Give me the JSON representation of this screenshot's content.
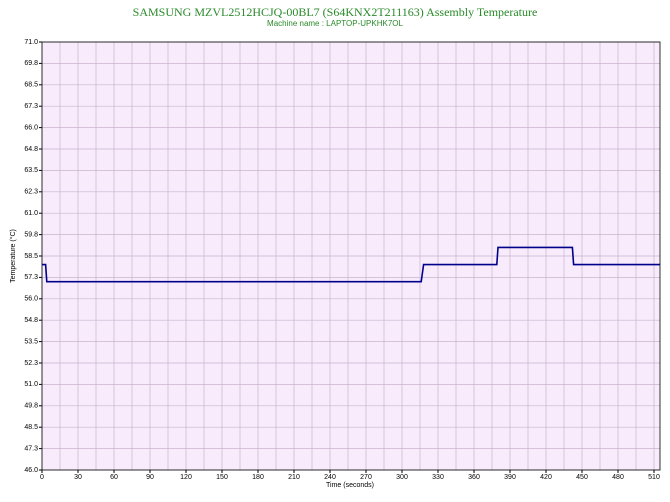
{
  "chart_data": {
    "type": "line",
    "title": "SAMSUNG MZVL2512HCJQ-00BL7 (S64KNX2T211163) Assembly Temperature",
    "subtitle": "Machine name : LAPTOP-UPKHK7OL",
    "x_label": "Time (seconds)",
    "y_label": "Temperature (°C)",
    "x": [
      0,
      3,
      4,
      316,
      318,
      379,
      380,
      442,
      443,
      515
    ],
    "series": [
      {
        "color": "#00008b",
        "values": [
          58,
          58,
          57,
          57,
          58,
          58,
          59,
          59,
          58,
          58
        ]
      }
    ],
    "xlim": [
      0,
      515
    ],
    "xticks": [
      0,
      30,
      60,
      90,
      120,
      150,
      180,
      210,
      240,
      270,
      300,
      330,
      360,
      390,
      420,
      450,
      480,
      510
    ],
    "ylim": [
      46,
      71
    ],
    "yticks": [
      {
        "value": 46,
        "label": "46.0"
      },
      {
        "value": 47.25,
        "label": "47.3"
      },
      {
        "value": 48.5,
        "label": "48.5"
      },
      {
        "value": 49.75,
        "label": "49.8"
      },
      {
        "value": 51,
        "label": "51.0"
      },
      {
        "value": 52.25,
        "label": "52.3"
      },
      {
        "value": 53.5,
        "label": "53.5"
      },
      {
        "value": 54.75,
        "label": "54.8"
      },
      {
        "value": 56,
        "label": "56.0"
      },
      {
        "value": 57.25,
        "label": "57.3"
      },
      {
        "value": 58.5,
        "label": "58.5"
      },
      {
        "value": 59.75,
        "label": "59.8"
      },
      {
        "value": 61,
        "label": "61.0"
      },
      {
        "value": 62.25,
        "label": "62.3"
      },
      {
        "value": 63.5,
        "label": "63.5"
      },
      {
        "value": 64.75,
        "label": "64.8"
      },
      {
        "value": 66,
        "label": "66.0"
      },
      {
        "value": 67.25,
        "label": "67.3"
      },
      {
        "value": 68.5,
        "label": "68.5"
      },
      {
        "value": 69.75,
        "label": "69.8"
      },
      {
        "value": 71,
        "label": "71.0"
      }
    ],
    "grid": true
  }
}
